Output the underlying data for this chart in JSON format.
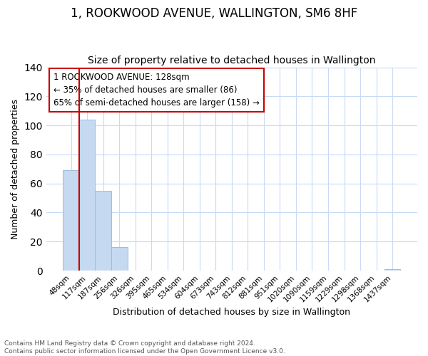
{
  "title": "1, ROOKWOOD AVENUE, WALLINGTON, SM6 8HF",
  "subtitle": "Size of property relative to detached houses in Wallington",
  "xlabel": "Distribution of detached houses by size in Wallington",
  "ylabel": "Number of detached properties",
  "bar_labels": [
    "48sqm",
    "117sqm",
    "187sqm",
    "256sqm",
    "326sqm",
    "395sqm",
    "465sqm",
    "534sqm",
    "604sqm",
    "673sqm",
    "743sqm",
    "812sqm",
    "881sqm",
    "951sqm",
    "1020sqm",
    "1090sqm",
    "1159sqm",
    "1229sqm",
    "1298sqm",
    "1368sqm",
    "1437sqm"
  ],
  "bar_values": [
    69,
    104,
    55,
    16,
    0,
    0,
    0,
    0,
    0,
    0,
    0,
    0,
    0,
    0,
    0,
    0,
    0,
    0,
    0,
    0,
    1
  ],
  "bar_color": "#c5d9f1",
  "bar_edge_color": "#9bbde0",
  "property_line_color": "#cc0000",
  "annotation_line0": "1 ROOKWOOD AVENUE: 128sqm",
  "annotation_line1": "← 35% of detached houses are smaller (86)",
  "annotation_line2": "65% of semi-detached houses are larger (158) →",
  "annotation_box_color": "#ffffff",
  "annotation_box_edge": "#cc0000",
  "ylim": [
    0,
    140
  ],
  "yticks": [
    0,
    20,
    40,
    60,
    80,
    100,
    120,
    140
  ],
  "footer1": "Contains HM Land Registry data © Crown copyright and database right 2024.",
  "footer2": "Contains public sector information licensed under the Open Government Licence v3.0.",
  "background_color": "#ffffff",
  "grid_color": "#c8daf5",
  "title_fontsize": 12,
  "subtitle_fontsize": 10
}
